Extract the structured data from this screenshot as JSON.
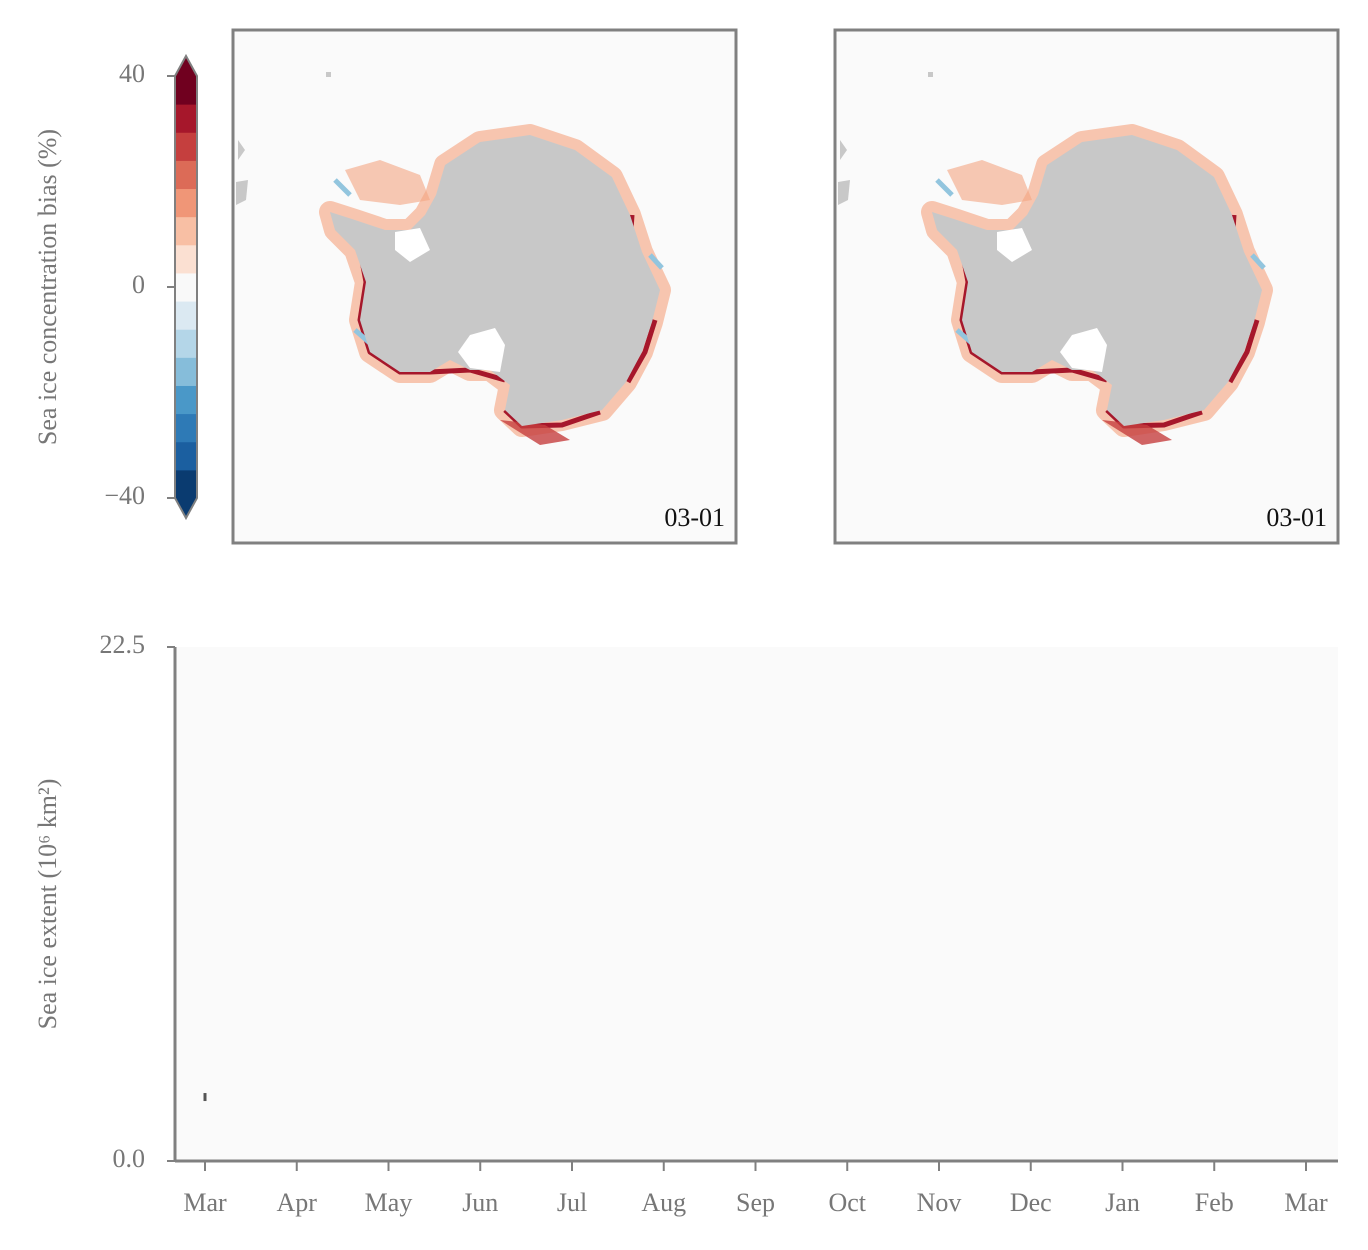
{
  "chart_data": [
    {
      "type": "colorbar",
      "title": "Sea ice concentration bias (%)",
      "ylim": [
        -40,
        40
      ],
      "yticks": [
        40,
        0,
        {
          "value": -40,
          "label": "−40"
        }
      ],
      "colors": [
        "#0a3b70",
        "#1b5fa0",
        "#2e7ab6",
        "#4a98c8",
        "#86bdda",
        "#b4d6e8",
        "#dbe9f2",
        "#f9f9f9",
        "#fbe0d2",
        "#f8bfa4",
        "#f09677",
        "#dc6b57",
        "#c53f3e",
        "#a6172b",
        "#70001f"
      ]
    },
    {
      "type": "map",
      "label": "03-01"
    },
    {
      "type": "map",
      "label": "03-01"
    },
    {
      "type": "line",
      "ylabel": "Sea ice extent (10⁶ km²)",
      "categories": [
        "Mar",
        "Apr",
        "May",
        "Jun",
        "Jul",
        "Aug",
        "Sep",
        "Oct",
        "Nov",
        "Dec",
        "Jan",
        "Feb",
        "Mar"
      ],
      "values": [
        2.8,
        null,
        null,
        null,
        null,
        null,
        null,
        null,
        null,
        null,
        null,
        null,
        null
      ],
      "color": "#555555",
      "ylim": [
        0,
        22.5
      ],
      "yticks": [
        {
          "value": 0,
          "label": "0.0"
        },
        22.5
      ]
    }
  ]
}
